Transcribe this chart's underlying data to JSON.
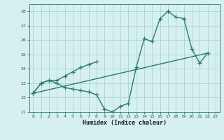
{
  "xlabel": "Humidex (Indice chaleur)",
  "bg_color": "#d6f0ef",
  "grid_color": "#b0d8d6",
  "line_color": "#2a7a6f",
  "xlim": [
    -0.5,
    23.5
  ],
  "ylim": [
    21,
    28.5
  ],
  "yticks": [
    21,
    22,
    23,
    24,
    25,
    26,
    27,
    28
  ],
  "xticks": [
    0,
    1,
    2,
    3,
    4,
    5,
    6,
    7,
    8,
    9,
    10,
    11,
    12,
    13,
    14,
    15,
    16,
    17,
    18,
    19,
    20,
    21,
    22,
    23
  ],
  "line1_x": [
    0,
    1,
    2,
    3,
    4,
    5,
    6,
    7,
    8,
    9,
    10,
    11,
    12,
    13,
    14,
    15,
    16,
    17,
    18,
    19,
    20,
    21,
    22
  ],
  "line1_y": [
    22.3,
    23.0,
    23.2,
    23.0,
    22.7,
    22.6,
    22.5,
    22.4,
    22.2,
    21.2,
    21.0,
    21.4,
    21.6,
    24.1,
    26.1,
    25.9,
    27.5,
    28.0,
    27.6,
    27.5,
    25.4,
    24.4,
    25.1
  ],
  "line2_x": [
    0,
    1,
    2,
    3,
    4,
    5,
    6,
    7,
    8
  ],
  "line2_y": [
    22.3,
    23.0,
    23.2,
    23.2,
    23.5,
    23.8,
    24.1,
    24.3,
    24.5
  ],
  "line3_x": [
    0,
    22
  ],
  "line3_y": [
    22.3,
    25.1
  ],
  "marker_size": 4,
  "line_width": 1.0
}
